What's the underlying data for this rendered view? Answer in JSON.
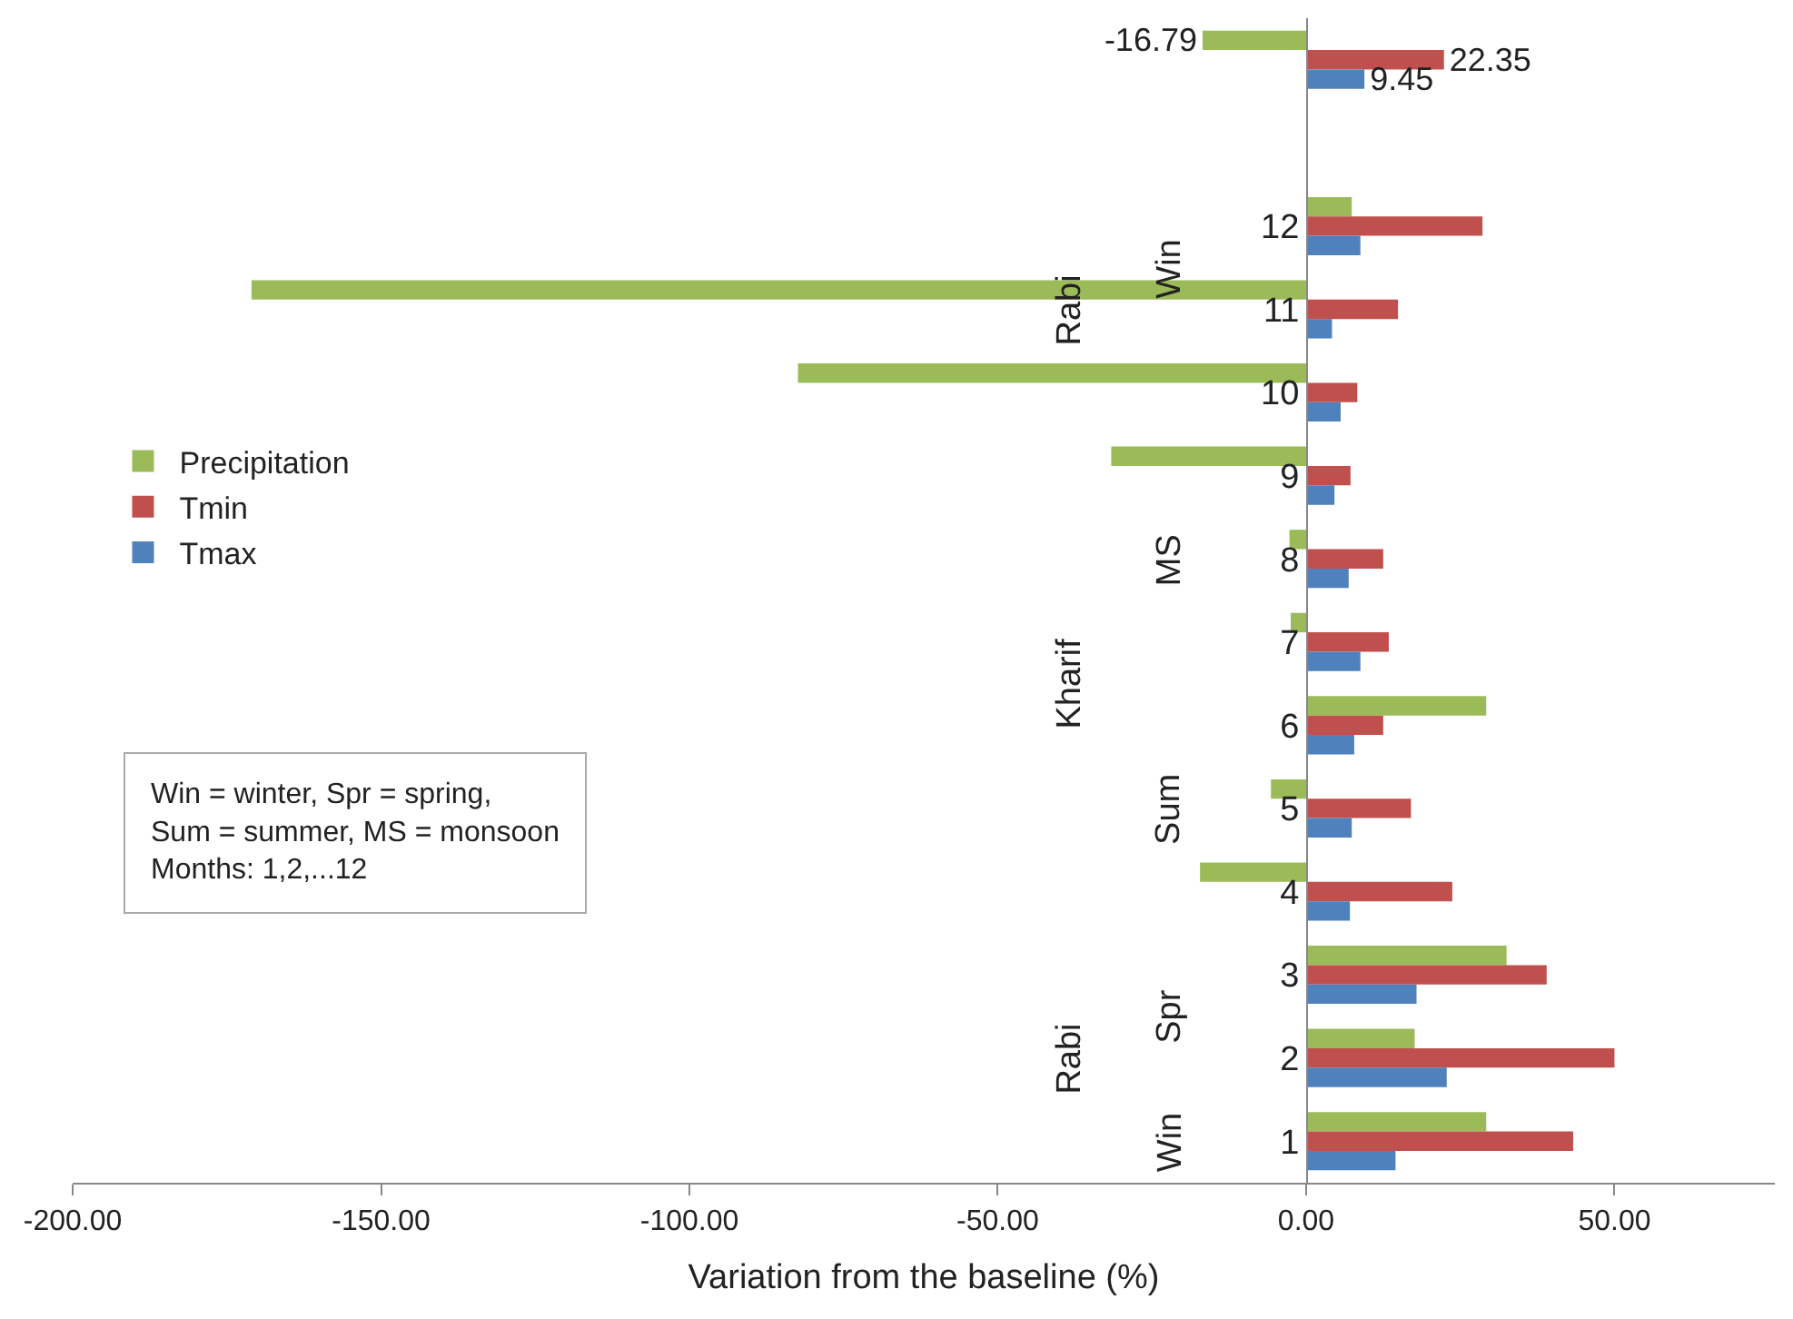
{
  "chart_data": {
    "type": "bar",
    "orientation": "horizontal",
    "xlabel": "Variation from the baseline (%)",
    "categories": [
      null,
      null,
      "12",
      "11",
      "10",
      "9",
      "8",
      "7",
      "6",
      "5",
      "4",
      "3",
      "2",
      "1"
    ],
    "series": [
      {
        "name": "Precipitation",
        "color": "#9bbb59",
        "values": [
          -16.79,
          null,
          7.4,
          -171,
          -82.4,
          -31.6,
          -2.7,
          -2.5,
          29.2,
          -5.7,
          -17.2,
          32.5,
          17.6,
          29.2
        ],
        "value_labels": [
          "-16.79",
          null,
          null,
          null,
          null,
          null,
          null,
          null,
          null,
          null,
          null,
          null,
          null,
          null
        ]
      },
      {
        "name": "Tmin",
        "color": "#c0504d",
        "values": [
          22.35,
          null,
          28.6,
          14.9,
          8.3,
          7.2,
          12.5,
          13.4,
          12.5,
          17.0,
          23.7,
          39.0,
          50.0,
          43.3
        ],
        "value_labels": [
          "22.35",
          null,
          null,
          null,
          null,
          null,
          null,
          null,
          null,
          null,
          null,
          null,
          null,
          null
        ]
      },
      {
        "name": "Tmax",
        "color": "#4f81bd",
        "values": [
          9.45,
          null,
          8.8,
          4.2,
          5.6,
          4.6,
          6.9,
          8.8,
          7.8,
          7.4,
          7.1,
          17.9,
          22.8,
          14.5
        ],
        "value_labels": [
          "9.45",
          null,
          null,
          null,
          null,
          null,
          null,
          null,
          null,
          null,
          null,
          null,
          null,
          null
        ]
      }
    ],
    "xlim": [
      -200,
      76
    ],
    "xticks": [
      {
        "value": -200,
        "label": "-200.00"
      },
      {
        "value": -150,
        "label": "-150.00"
      },
      {
        "value": -100,
        "label": "-100.00"
      },
      {
        "value": -50,
        "label": "-50.00"
      },
      {
        "value": 0,
        "label": "0.00"
      },
      {
        "value": 50,
        "label": "50.00"
      }
    ],
    "legend": "left",
    "annotations": [
      "Win",
      "Spr",
      "Sum",
      "MS",
      "Win",
      "Rabi",
      "Kharif",
      "Rabi",
      "Win = winter, Spr = spring,\nSum = summer, MS = monsoon\nMonths: 1,2,...12"
    ]
  }
}
